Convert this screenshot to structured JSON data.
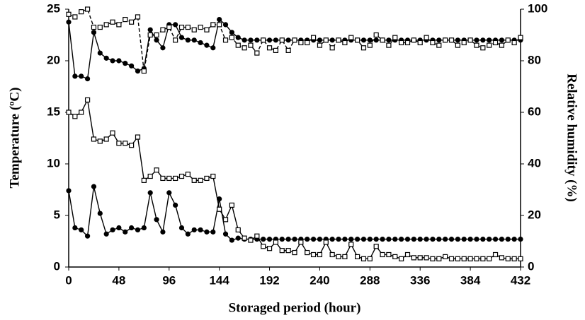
{
  "chart_data": {
    "type": "line",
    "x_label": "Storaged period (hour)",
    "y_label": "Temperature (ºC)",
    "y2_label": "Relative humidity  (%)",
    "xlim": [
      0,
      432
    ],
    "xticks": [
      0,
      48,
      96,
      144,
      192,
      240,
      288,
      336,
      384,
      432
    ],
    "ylim": [
      0,
      25
    ],
    "yticks": [
      0,
      5,
      10,
      15,
      20,
      25
    ],
    "y2lim": [
      0,
      100
    ],
    "y2ticks": [
      0,
      20,
      40,
      60,
      80,
      100
    ],
    "x": [
      0,
      6,
      12,
      18,
      24,
      30,
      36,
      42,
      48,
      54,
      60,
      66,
      72,
      78,
      84,
      90,
      96,
      102,
      108,
      114,
      120,
      126,
      132,
      138,
      144,
      150,
      156,
      162,
      168,
      174,
      180,
      186,
      192,
      198,
      204,
      210,
      216,
      222,
      228,
      234,
      240,
      246,
      252,
      258,
      264,
      270,
      276,
      282,
      288,
      294,
      300,
      306,
      312,
      318,
      324,
      330,
      336,
      342,
      348,
      354,
      360,
      366,
      372,
      378,
      384,
      390,
      396,
      402,
      408,
      414,
      420,
      426,
      432
    ],
    "series": [
      {
        "color": "#000000",
        "marker": "circle",
        "line_style": "solid",
        "values": [
          7.4,
          3.8,
          3.6,
          3.0,
          7.8,
          5.2,
          3.2,
          3.6,
          3.8,
          3.4,
          3.8,
          3.6,
          3.8,
          7.2,
          4.6,
          3.4,
          7.2,
          6.0,
          3.8,
          3.2,
          3.6,
          3.6,
          3.4,
          3.4,
          6.6,
          3.2,
          2.6,
          2.8,
          2.7,
          2.7,
          2.7,
          2.7,
          2.7,
          2.7,
          2.7,
          2.7,
          2.7,
          2.7,
          2.7,
          2.7,
          2.7,
          2.7,
          2.7,
          2.7,
          2.7,
          2.7,
          2.7,
          2.7,
          2.7,
          2.7,
          2.7,
          2.7,
          2.7,
          2.7,
          2.7,
          2.7,
          2.7,
          2.7,
          2.7,
          2.7,
          2.7,
          2.7,
          2.7,
          2.7,
          2.7,
          2.7,
          2.7,
          2.7,
          2.7,
          2.7,
          2.7,
          2.7,
          2.7
        ]
      },
      {
        "color": "#000000",
        "marker": "square",
        "line_style": "solid",
        "values": [
          15.0,
          14.6,
          15.0,
          16.2,
          12.4,
          12.2,
          12.4,
          13.0,
          12.0,
          12.0,
          11.8,
          12.6,
          8.4,
          8.8,
          9.4,
          8.6,
          8.6,
          8.6,
          8.8,
          9.0,
          8.4,
          8.4,
          8.6,
          8.8,
          5.6,
          4.6,
          6.0,
          3.6,
          2.8,
          2.6,
          3.0,
          2.0,
          1.8,
          2.4,
          1.6,
          1.6,
          1.4,
          2.4,
          1.4,
          1.2,
          1.2,
          2.4,
          1.2,
          1.0,
          1.0,
          2.2,
          1.0,
          0.8,
          0.8,
          2.0,
          1.2,
          1.2,
          1.0,
          0.8,
          1.2,
          0.9,
          0.9,
          0.9,
          0.8,
          0.8,
          1.0,
          0.8,
          0.8,
          0.8,
          0.8,
          0.8,
          0.8,
          0.8,
          1.2,
          0.9,
          0.8,
          0.8,
          0.8
        ]
      },
      {
        "color": "#000000",
        "marker": "circle",
        "line_style": "solid",
        "axis": "y2",
        "values": [
          95,
          74,
          74,
          73,
          91,
          83,
          81,
          80,
          80,
          79,
          78,
          76,
          77,
          92,
          88,
          85,
          94,
          94,
          89,
          88,
          88,
          87,
          86,
          85,
          96,
          94,
          91,
          89,
          88,
          88,
          88,
          88,
          88,
          88,
          88,
          88,
          88,
          88,
          88,
          88,
          88,
          88,
          88,
          88,
          88,
          88,
          88,
          88,
          88,
          88,
          88,
          88,
          88,
          88,
          88,
          88,
          88,
          88,
          88,
          88,
          88,
          88,
          88,
          88,
          88,
          88,
          88,
          88,
          88,
          88,
          88,
          88,
          88
        ]
      },
      {
        "color": "#000000",
        "marker": "square",
        "line_style": "dashed",
        "axis": "y2",
        "values": [
          98,
          97,
          99,
          100,
          93,
          93,
          94,
          95,
          94,
          96,
          95,
          97,
          76,
          90,
          90,
          92,
          93,
          88,
          93,
          93,
          92,
          93,
          92,
          94,
          94,
          88,
          89,
          86,
          85,
          86,
          83,
          88,
          85,
          84,
          88,
          84,
          88,
          87,
          87,
          89,
          86,
          88,
          85,
          88,
          87,
          89,
          88,
          85,
          86,
          90,
          88,
          86,
          89,
          87,
          87,
          88,
          87,
          89,
          87,
          86,
          88,
          88,
          86,
          87,
          88,
          86,
          85,
          86,
          87,
          86,
          88,
          87,
          89
        ]
      }
    ]
  }
}
